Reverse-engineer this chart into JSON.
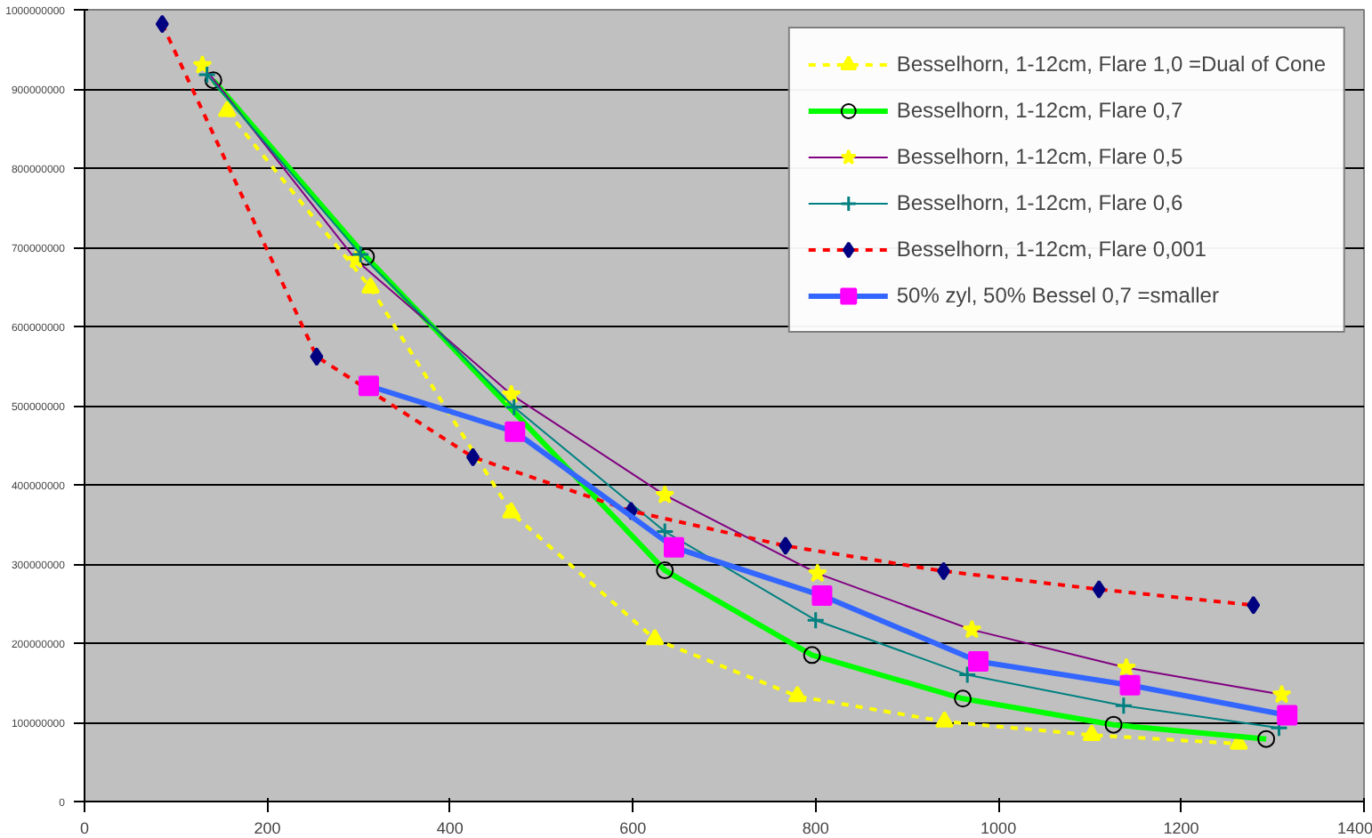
{
  "chart_data": {
    "type": "line",
    "xlim": [
      0,
      1400
    ],
    "xticks": [
      0,
      200,
      400,
      600,
      800,
      1000,
      1200,
      1400
    ],
    "ylim": [
      0,
      1000000000
    ],
    "yticks": [
      0,
      100000000,
      200000000,
      300000000,
      400000000,
      500000000,
      600000000,
      700000000,
      800000000,
      900000000,
      1000000000
    ],
    "grid": "y",
    "legend": "top right",
    "series": [
      {
        "name": "Besselhorn, 1-12cm, Flare 1,0 =Dual of Cone",
        "color": "#ffff00",
        "colors": [
          "#ffff00",
          "#ffff00",
          "#ffff00",
          "#ffff00",
          "#ffff00",
          "#ffff00",
          "#ffff00",
          "#ffff00"
        ],
        "marker": "triangle",
        "line_style": "dashed",
        "x": [
          156,
          313,
          467,
          624,
          780,
          941,
          1102,
          1263
        ],
        "values": [
          872000000,
          649000000,
          365000000,
          205000000,
          133000000,
          101000000,
          84000000,
          73000000
        ]
      },
      {
        "name": "Besselhorn, 1-12cm, Flare 0,7",
        "color": "#00ff00",
        "colors": [
          "#000000",
          "#000000",
          "#000000",
          "#000000",
          "#000000",
          "#000000",
          "#000000"
        ],
        "marker": "circle",
        "line_style": "solid",
        "x": [
          141,
          308,
          635,
          796,
          961,
          1126,
          1293
        ],
        "values": [
          911000000,
          688000000,
          292000000,
          185000000,
          130000000,
          97000000,
          79000000
        ]
      },
      {
        "name": "Besselhorn, 1-12cm, Flare 0,5",
        "color": "#800080",
        "colors": [
          "#ffff00",
          "#ffff00",
          "#ffff00",
          "#ffff00",
          "#ffff00",
          "#ffff00",
          "#ffff00",
          "#ffff00"
        ],
        "marker": "star",
        "line_style": "solid",
        "x": [
          129,
          297,
          467,
          635,
          802,
          971,
          1140,
          1310
        ],
        "values": [
          930000000,
          684000000,
          514000000,
          387000000,
          288000000,
          217000000,
          169000000,
          135000000
        ]
      },
      {
        "name": "Besselhorn, 1-12cm, Flare 0,6",
        "color": "#008080",
        "colors": [
          "#008080",
          "#008080",
          "#008080",
          "#008080",
          "#008080",
          "#008080",
          "#008080",
          "#008080"
        ],
        "marker": "cross",
        "line_style": "solid",
        "x": [
          134,
          302,
          470,
          635,
          800,
          966,
          1137,
          1307
        ],
        "values": [
          918000000,
          691000000,
          498000000,
          341000000,
          229000000,
          160000000,
          121000000,
          93000000
        ]
      },
      {
        "name": "Besselhorn, 1-12cm, Flare 0,001",
        "color": "#ff0000",
        "colors": [
          "#000080",
          "#000080",
          "#000080",
          "#000080",
          "#000080",
          "#000080",
          "#000080",
          "#000080"
        ],
        "marker": "diamond",
        "line_style": "dashed",
        "x": [
          85,
          254,
          425,
          598,
          767,
          940,
          1110,
          1279
        ],
        "values": [
          982000000,
          562000000,
          435000000,
          367000000,
          323000000,
          291000000,
          268000000,
          248000000
        ]
      },
      {
        "name": "50% zyl, 50% Bessel 0,7 =smaller",
        "color": "#3366ff",
        "colors": [
          "#ff00ff",
          "#ff00ff",
          "#ff00ff",
          "#ff00ff",
          "#ff00ff",
          "#ff00ff",
          "#ff00ff"
        ],
        "marker": "square",
        "line_style": "solid",
        "x": [
          311,
          471,
          645,
          807,
          978,
          1144,
          1316
        ],
        "values": [
          525000000,
          467000000,
          321000000,
          260000000,
          177000000,
          147000000,
          109000000
        ]
      }
    ]
  }
}
